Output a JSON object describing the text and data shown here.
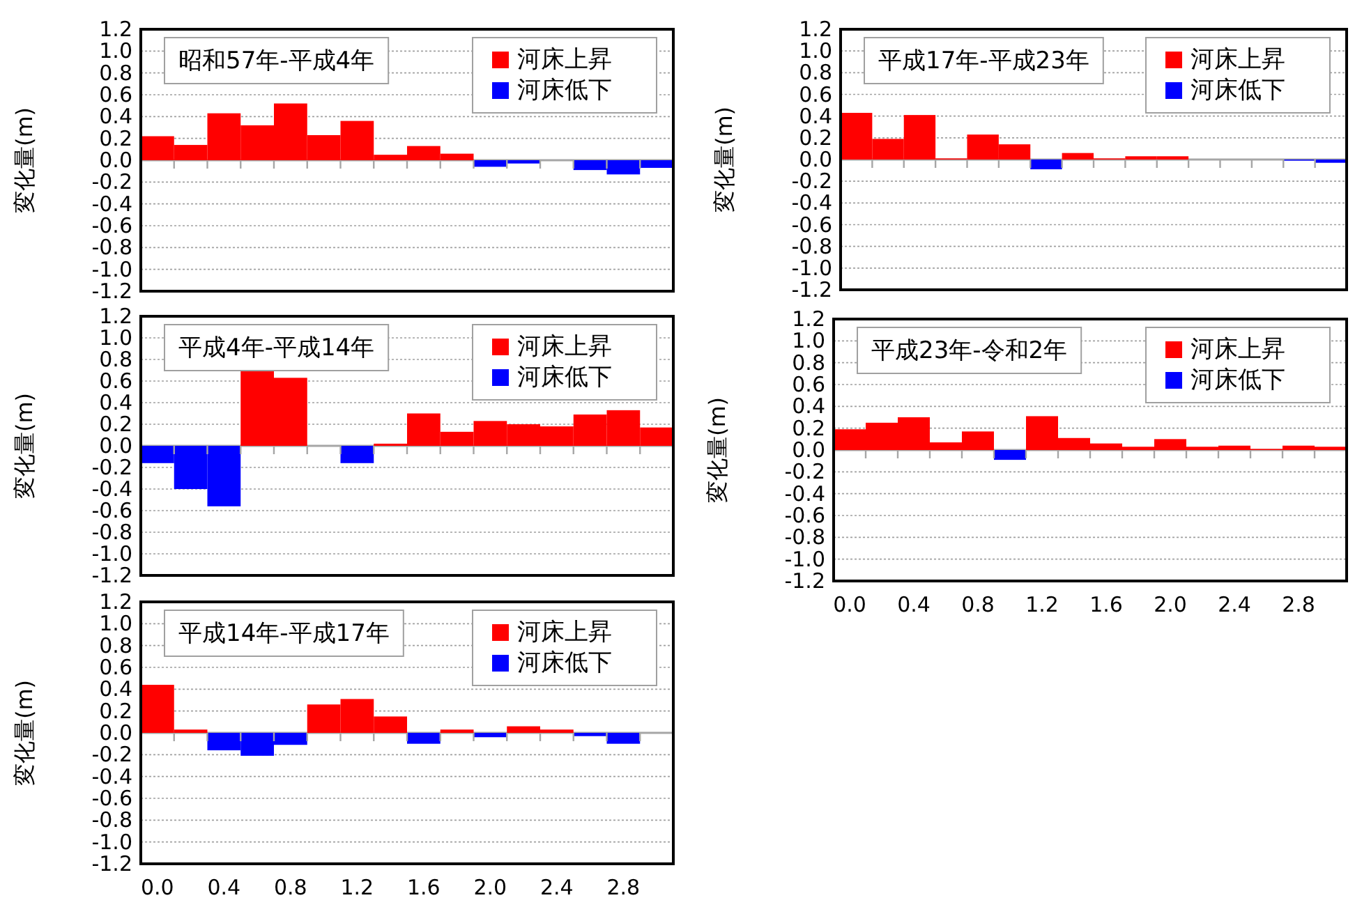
{
  "chart_data": [
    {
      "type": "bar",
      "title": "昭和57年-平成4年",
      "ylabel": "変化量(m)",
      "categories": [
        null,
        null,
        null,
        null,
        null,
        null,
        null,
        null,
        null,
        null,
        null,
        null,
        null,
        null,
        null,
        null
      ],
      "series": [
        {
          "name": "河床上昇",
          "color": "#ff0000",
          "values": [
            0.22,
            0.14,
            0.43,
            0.32,
            0.52,
            0.23,
            0.36,
            0.05,
            0.13,
            0.06,
            null,
            null,
            null,
            null,
            null,
            null
          ]
        },
        {
          "name": "河床低下",
          "color": "#0000ff",
          "values": [
            null,
            null,
            null,
            null,
            null,
            null,
            null,
            null,
            null,
            null,
            -0.06,
            -0.03,
            null,
            -0.09,
            -0.13,
            -0.07
          ]
        }
      ],
      "ylim": [
        -1.2,
        1.2
      ],
      "yticks": [
        1.2,
        {
          "value": 1,
          "label": "1.0"
        },
        0.8,
        0.6,
        0.4,
        0.2,
        {
          "value": 0,
          "label": "0.0"
        },
        -0.2,
        -0.4,
        -0.6,
        -0.8,
        {
          "value": -1,
          "label": "-1.0"
        },
        -1.2
      ],
      "grid": "y",
      "legend": "top right",
      "tick_labels": "y"
    },
    {
      "type": "bar",
      "title": "平成17年-平成23年",
      "ylabel": "変化量(m)",
      "categories": [
        null,
        null,
        null,
        null,
        null,
        null,
        null,
        null,
        null,
        null,
        null,
        null,
        null,
        null,
        null,
        null
      ],
      "series": [
        {
          "name": "河床上昇",
          "color": "#ff0000",
          "values": [
            0.43,
            0.19,
            0.41,
            0.01,
            0.23,
            0.14,
            null,
            0.06,
            0.01,
            0.03,
            0.03,
            null,
            null,
            null,
            null,
            null
          ]
        },
        {
          "name": "河床低下",
          "color": "#0000ff",
          "values": [
            null,
            null,
            null,
            null,
            null,
            null,
            -0.09,
            null,
            null,
            null,
            null,
            null,
            null,
            null,
            -0.01,
            -0.03
          ]
        }
      ],
      "ylim": [
        -1.2,
        1.2
      ],
      "yticks": [
        1.2,
        {
          "value": 1,
          "label": "1.0"
        },
        0.8,
        0.6,
        0.4,
        0.2,
        {
          "value": 0,
          "label": "0.0"
        },
        -0.2,
        -0.4,
        -0.6,
        -0.8,
        {
          "value": -1,
          "label": "-1.0"
        },
        -1.2
      ],
      "grid": "y",
      "legend": "top right",
      "tick_labels": "y"
    },
    {
      "type": "bar",
      "title": "平成4年-平成14年",
      "ylabel": "変化量(m)",
      "categories": [
        null,
        null,
        null,
        null,
        null,
        null,
        null,
        null,
        null,
        null,
        null,
        null,
        null,
        null,
        null,
        null
      ],
      "series": [
        {
          "name": "河床上昇",
          "color": "#ff0000",
          "values": [
            null,
            null,
            null,
            0.71,
            0.63,
            null,
            null,
            0.02,
            0.3,
            0.13,
            0.23,
            0.2,
            0.18,
            0.29,
            0.33,
            0.17
          ]
        },
        {
          "name": "河床低下",
          "color": "#0000ff",
          "values": [
            -0.16,
            -0.4,
            -0.56,
            null,
            null,
            null,
            -0.16,
            null,
            null,
            null,
            null,
            null,
            null,
            null,
            null,
            null
          ]
        }
      ],
      "ylim": [
        -1.2,
        1.2
      ],
      "yticks": [
        1.2,
        {
          "value": 1,
          "label": "1.0"
        },
        0.8,
        0.6,
        0.4,
        0.2,
        {
          "value": 0,
          "label": "0.0"
        },
        -0.2,
        -0.4,
        -0.6,
        -0.8,
        {
          "value": -1,
          "label": "-1.0"
        },
        -1.2
      ],
      "grid": "y",
      "legend": "top right",
      "tick_labels": "y"
    },
    {
      "type": "bar",
      "title": "平成23年-令和2年",
      "ylabel": "変化量(m)",
      "categories": [
        "0.0",
        null,
        "0.4",
        null,
        "0.8",
        null,
        "1.2",
        null,
        "1.6",
        null,
        "2.0",
        null,
        "2.4",
        null,
        "2.8",
        null
      ],
      "series": [
        {
          "name": "河床上昇",
          "color": "#ff0000",
          "values": [
            0.19,
            0.25,
            0.3,
            0.07,
            0.17,
            null,
            0.31,
            0.11,
            0.06,
            0.03,
            0.1,
            0.03,
            0.04,
            0.01,
            0.04,
            0.03
          ]
        },
        {
          "name": "河床低下",
          "color": "#0000ff",
          "values": [
            null,
            null,
            null,
            null,
            null,
            -0.09,
            null,
            null,
            null,
            null,
            null,
            null,
            null,
            null,
            null,
            null
          ]
        }
      ],
      "ylim": [
        -1.2,
        1.2
      ],
      "yticks": [
        1.2,
        {
          "value": 1,
          "label": "1.0"
        },
        0.8,
        0.6,
        0.4,
        0.2,
        {
          "value": 0,
          "label": "0.0"
        },
        -0.2,
        -0.4,
        -0.6,
        -0.8,
        {
          "value": -1,
          "label": "-1.0"
        },
        -1.2
      ],
      "grid": "y",
      "legend": "top right"
    },
    {
      "type": "bar",
      "title": "平成14年-平成17年",
      "ylabel": "変化量(m)",
      "categories": [
        "0.0",
        null,
        "0.4",
        null,
        "0.8",
        null,
        "1.2",
        null,
        "1.6",
        null,
        "2.0",
        null,
        "2.4",
        null,
        "2.8",
        null
      ],
      "series": [
        {
          "name": "河床上昇",
          "color": "#ff0000",
          "values": [
            0.44,
            0.03,
            null,
            null,
            null,
            0.26,
            0.31,
            0.15,
            null,
            0.03,
            null,
            0.06,
            0.03,
            null,
            null,
            null
          ]
        },
        {
          "name": "河床低下",
          "color": "#0000ff",
          "values": [
            null,
            null,
            -0.16,
            -0.21,
            -0.11,
            null,
            null,
            null,
            -0.1,
            null,
            -0.04,
            null,
            null,
            -0.03,
            -0.1,
            null
          ]
        }
      ],
      "ylim": [
        -1.2,
        1.2
      ],
      "yticks": [
        1.2,
        {
          "value": 1,
          "label": "1.0"
        },
        0.8,
        0.6,
        0.4,
        0.2,
        {
          "value": 0,
          "label": "0.0"
        },
        -0.2,
        -0.4,
        -0.6,
        -0.8,
        {
          "value": -1,
          "label": "-1.0"
        },
        -1.2
      ],
      "grid": "y",
      "legend": "top right"
    }
  ]
}
